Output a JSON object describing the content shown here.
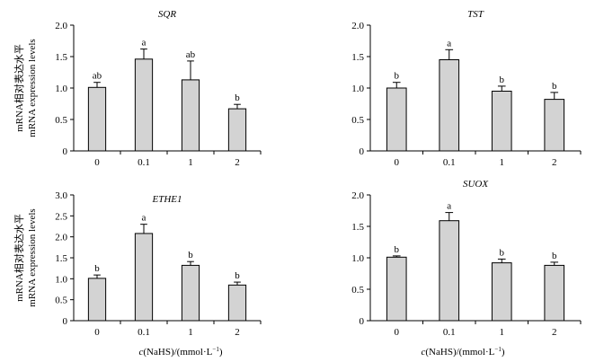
{
  "figure": {
    "ylabel_cn": "mRNA相对表达水平",
    "ylabel_en": "mRNA expression levels",
    "xlabel_prefix": "c",
    "xlabel_rest": "(NaHS)/(mmol·L",
    "xlabel_sup": "−1",
    "xlabel_close": ")"
  },
  "chart_data": [
    {
      "type": "bar",
      "title": "SQR",
      "categories": [
        "0",
        "0.1",
        "1",
        "2"
      ],
      "values": [
        1.01,
        1.46,
        1.13,
        0.67
      ],
      "errors": [
        0.08,
        0.16,
        0.3,
        0.07
      ],
      "letters": [
        "ab",
        "a",
        "ab",
        "b"
      ],
      "ylim": [
        0,
        2.0
      ],
      "yticks": [
        "0",
        "0.5",
        "1.0",
        "1.5",
        "2.0"
      ],
      "bar_color": "#d3d3d3"
    },
    {
      "type": "bar",
      "title": "TST",
      "categories": [
        "0",
        "0.1",
        "1",
        "2"
      ],
      "values": [
        1.0,
        1.45,
        0.95,
        0.82
      ],
      "errors": [
        0.09,
        0.16,
        0.08,
        0.11
      ],
      "letters": [
        "b",
        "a",
        "b",
        "b"
      ],
      "ylim": [
        0,
        2.0
      ],
      "yticks": [
        "0",
        "0.5",
        "1.0",
        "1.5",
        "2.0"
      ],
      "bar_color": "#d3d3d3"
    },
    {
      "type": "bar",
      "title": "ETHE1",
      "categories": [
        "0",
        "0.1",
        "1",
        "2"
      ],
      "values": [
        1.01,
        2.08,
        1.32,
        0.85
      ],
      "errors": [
        0.08,
        0.22,
        0.09,
        0.07
      ],
      "letters": [
        "b",
        "a",
        "b",
        "b"
      ],
      "ylim": [
        0,
        3.0
      ],
      "yticks": [
        "0",
        "0.5",
        "1.0",
        "1.5",
        "2.0",
        "2.5",
        "3.0"
      ],
      "bar_color": "#d3d3d3"
    },
    {
      "type": "bar",
      "title": "SUOX",
      "categories": [
        "0",
        "0.1",
        "1",
        "2"
      ],
      "values": [
        1.01,
        1.59,
        0.92,
        0.88
      ],
      "errors": [
        0.02,
        0.13,
        0.06,
        0.05
      ],
      "letters": [
        "b",
        "a",
        "b",
        "b"
      ],
      "ylim": [
        0,
        2.0
      ],
      "yticks": [
        "0",
        "0.5",
        "1.0",
        "1.5",
        "2.0"
      ],
      "bar_color": "#d3d3d3"
    }
  ]
}
